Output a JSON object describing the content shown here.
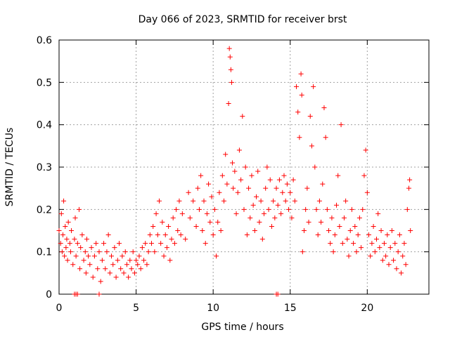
{
  "chart_data": {
    "type": "scatter",
    "title": "Day 066 of 2023, SRMTID for receiver brst",
    "xlabel": "GPS time / hours",
    "ylabel": "SRMTID / TECUs",
    "xlim": [
      0,
      24
    ],
    "ylim": [
      0,
      0.6
    ],
    "grid": true,
    "marker": "+",
    "color": "#ff0000",
    "x_ticks": [
      0,
      5,
      10,
      15,
      20
    ],
    "x_tick_labels": [
      "0",
      "5",
      "10",
      "15",
      "20"
    ],
    "y_ticks": [
      0,
      0.1,
      0.2,
      0.3,
      0.4,
      0.5,
      0.6
    ],
    "y_tick_labels": [
      "0",
      "0.1",
      "0.2",
      "0.3",
      "0.4",
      "0.5",
      "0.6"
    ],
    "series": [
      {
        "name": "SRMTID",
        "points": [
          [
            0.0,
            0.15
          ],
          [
            0.1,
            0.12
          ],
          [
            0.15,
            0.19
          ],
          [
            0.2,
            0.1
          ],
          [
            0.25,
            0.14
          ],
          [
            0.3,
            0.22
          ],
          [
            0.35,
            0.09
          ],
          [
            0.4,
            0.16
          ],
          [
            0.45,
            0.11
          ],
          [
            0.5,
            0.13
          ],
          [
            0.55,
            0.08
          ],
          [
            0.6,
            0.17
          ],
          [
            0.7,
            0.12
          ],
          [
            0.75,
            0.1
          ],
          [
            0.8,
            0.15
          ],
          [
            0.9,
            0.07
          ],
          [
            1.0,
            0.13
          ],
          [
            1.05,
            0.18
          ],
          [
            1.1,
            0.09
          ],
          [
            1.2,
            0.12
          ],
          [
            1.3,
            0.2
          ],
          [
            1.35,
            0.06
          ],
          [
            1.4,
            0.11
          ],
          [
            1.5,
            0.14
          ],
          [
            1.6,
            0.08
          ],
          [
            1.7,
            0.1
          ],
          [
            1.75,
            0.05
          ],
          [
            1.8,
            0.13
          ],
          [
            1.9,
            0.09
          ],
          [
            2.0,
            0.07
          ],
          [
            2.1,
            0.11
          ],
          [
            2.2,
            0.04
          ],
          [
            2.3,
            0.09
          ],
          [
            2.4,
            0.12
          ],
          [
            2.5,
            0.06
          ],
          [
            2.6,
            0.1
          ],
          [
            2.7,
            0.03
          ],
          [
            2.8,
            0.08
          ],
          [
            2.9,
            0.12
          ],
          [
            3.0,
            0.06
          ],
          [
            3.1,
            0.1
          ],
          [
            3.2,
            0.14
          ],
          [
            3.3,
            0.05
          ],
          [
            3.4,
            0.09
          ],
          [
            3.5,
            0.07
          ],
          [
            3.6,
            0.11
          ],
          [
            3.7,
            0.04
          ],
          [
            3.8,
            0.08
          ],
          [
            3.9,
            0.12
          ],
          [
            4.0,
            0.06
          ],
          [
            4.1,
            0.09
          ],
          [
            4.2,
            0.05
          ],
          [
            4.3,
            0.1
          ],
          [
            4.4,
            0.07
          ],
          [
            4.5,
            0.04
          ],
          [
            4.6,
            0.08
          ],
          [
            4.7,
            0.06
          ],
          [
            4.8,
            0.1
          ],
          [
            4.9,
            0.05
          ],
          [
            5.0,
            0.08
          ],
          [
            5.1,
            0.07
          ],
          [
            5.2,
            0.09
          ],
          [
            5.3,
            0.06
          ],
          [
            5.4,
            0.11
          ],
          [
            5.5,
            0.08
          ],
          [
            5.6,
            0.12
          ],
          [
            5.7,
            0.07
          ],
          [
            5.8,
            0.1
          ],
          [
            5.9,
            0.14
          ],
          [
            6.0,
            0.12
          ],
          [
            6.1,
            0.16
          ],
          [
            6.2,
            0.1
          ],
          [
            6.3,
            0.19
          ],
          [
            6.4,
            0.14
          ],
          [
            6.5,
            0.22
          ],
          [
            6.6,
            0.12
          ],
          [
            6.7,
            0.17
          ],
          [
            6.8,
            0.09
          ],
          [
            6.9,
            0.14
          ],
          [
            7.0,
            0.11
          ],
          [
            7.1,
            0.16
          ],
          [
            7.2,
            0.08
          ],
          [
            7.3,
            0.13
          ],
          [
            7.4,
            0.18
          ],
          [
            7.5,
            0.12
          ],
          [
            7.6,
            0.2
          ],
          [
            7.7,
            0.15
          ],
          [
            7.8,
            0.22
          ],
          [
            7.9,
            0.14
          ],
          [
            8.0,
            0.19
          ],
          [
            8.2,
            0.13
          ],
          [
            8.4,
            0.24
          ],
          [
            8.5,
            0.18
          ],
          [
            8.7,
            0.22
          ],
          [
            8.9,
            0.16
          ],
          [
            9.0,
            0.25
          ],
          [
            9.1,
            0.2
          ],
          [
            9.2,
            0.28
          ],
          [
            9.3,
            0.15
          ],
          [
            9.4,
            0.22
          ],
          [
            9.5,
            0.12
          ],
          [
            9.6,
            0.19
          ],
          [
            9.7,
            0.26
          ],
          [
            9.8,
            0.17
          ],
          [
            9.9,
            0.23
          ],
          [
            10.0,
            0.14
          ],
          [
            10.1,
            0.2
          ],
          [
            10.2,
            0.09
          ],
          [
            10.3,
            0.17
          ],
          [
            10.4,
            0.24
          ],
          [
            10.5,
            0.15
          ],
          [
            10.6,
            0.28
          ],
          [
            10.7,
            0.22
          ],
          [
            10.8,
            0.33
          ],
          [
            10.9,
            0.26
          ],
          [
            11.0,
            0.45
          ],
          [
            11.05,
            0.58
          ],
          [
            11.1,
            0.56
          ],
          [
            11.15,
            0.53
          ],
          [
            11.2,
            0.5
          ],
          [
            11.25,
            0.31
          ],
          [
            11.3,
            0.25
          ],
          [
            11.4,
            0.29
          ],
          [
            11.5,
            0.19
          ],
          [
            11.6,
            0.24
          ],
          [
            11.7,
            0.34
          ],
          [
            11.8,
            0.27
          ],
          [
            11.9,
            0.42
          ],
          [
            12.0,
            0.2
          ],
          [
            12.1,
            0.3
          ],
          [
            12.2,
            0.14
          ],
          [
            12.3,
            0.25
          ],
          [
            12.4,
            0.18
          ],
          [
            12.5,
            0.28
          ],
          [
            12.6,
            0.21
          ],
          [
            12.7,
            0.15
          ],
          [
            12.8,
            0.23
          ],
          [
            12.9,
            0.29
          ],
          [
            13.0,
            0.17
          ],
          [
            13.1,
            0.22
          ],
          [
            13.2,
            0.13
          ],
          [
            13.3,
            0.19
          ],
          [
            13.4,
            0.25
          ],
          [
            13.5,
            0.3
          ],
          [
            13.6,
            0.2
          ],
          [
            13.7,
            0.27
          ],
          [
            13.8,
            0.16
          ],
          [
            13.9,
            0.22
          ],
          [
            14.0,
            0.18
          ],
          [
            14.1,
            0.25
          ],
          [
            14.2,
            0.21
          ],
          [
            14.3,
            0.27
          ],
          [
            14.4,
            0.19
          ],
          [
            14.5,
            0.24
          ],
          [
            14.6,
            0.28
          ],
          [
            14.7,
            0.22
          ],
          [
            14.8,
            0.26
          ],
          [
            14.9,
            0.2
          ],
          [
            15.0,
            0.24
          ],
          [
            15.1,
            0.18
          ],
          [
            15.2,
            0.27
          ],
          [
            15.3,
            0.22
          ],
          [
            15.4,
            0.49
          ],
          [
            15.5,
            0.43
          ],
          [
            15.6,
            0.37
          ],
          [
            15.7,
            0.52
          ],
          [
            15.75,
            0.47
          ],
          [
            15.8,
            0.1
          ],
          [
            15.9,
            0.15
          ],
          [
            16.0,
            0.2
          ],
          [
            16.1,
            0.25
          ],
          [
            16.2,
            0.17
          ],
          [
            16.3,
            0.42
          ],
          [
            16.4,
            0.35
          ],
          [
            16.5,
            0.49
          ],
          [
            16.6,
            0.3
          ],
          [
            16.7,
            0.2
          ],
          [
            16.8,
            0.14
          ],
          [
            16.9,
            0.22
          ],
          [
            17.0,
            0.17
          ],
          [
            17.1,
            0.26
          ],
          [
            17.2,
            0.44
          ],
          [
            17.3,
            0.37
          ],
          [
            17.4,
            0.2
          ],
          [
            17.5,
            0.15
          ],
          [
            17.6,
            0.12
          ],
          [
            17.7,
            0.18
          ],
          [
            17.8,
            0.1
          ],
          [
            17.9,
            0.14
          ],
          [
            18.0,
            0.21
          ],
          [
            18.1,
            0.28
          ],
          [
            18.2,
            0.16
          ],
          [
            18.3,
            0.4
          ],
          [
            18.4,
            0.12
          ],
          [
            18.5,
            0.18
          ],
          [
            18.6,
            0.22
          ],
          [
            18.7,
            0.13
          ],
          [
            18.8,
            0.09
          ],
          [
            18.9,
            0.15
          ],
          [
            19.0,
            0.2
          ],
          [
            19.1,
            0.12
          ],
          [
            19.2,
            0.16
          ],
          [
            19.3,
            0.1
          ],
          [
            19.4,
            0.14
          ],
          [
            19.5,
            0.18
          ],
          [
            19.6,
            0.11
          ],
          [
            19.7,
            0.2
          ],
          [
            19.8,
            0.28
          ],
          [
            19.9,
            0.34
          ],
          [
            20.0,
            0.24
          ],
          [
            20.1,
            0.14
          ],
          [
            20.2,
            0.09
          ],
          [
            20.3,
            0.12
          ],
          [
            20.4,
            0.16
          ],
          [
            20.5,
            0.1
          ],
          [
            20.6,
            0.13
          ],
          [
            20.7,
            0.19
          ],
          [
            20.8,
            0.11
          ],
          [
            20.9,
            0.15
          ],
          [
            21.0,
            0.08
          ],
          [
            21.1,
            0.12
          ],
          [
            21.2,
            0.09
          ],
          [
            21.3,
            0.14
          ],
          [
            21.4,
            0.07
          ],
          [
            21.5,
            0.11
          ],
          [
            21.6,
            0.15
          ],
          [
            21.7,
            0.08
          ],
          [
            21.8,
            0.12
          ],
          [
            21.9,
            0.06
          ],
          [
            22.0,
            0.1
          ],
          [
            22.1,
            0.14
          ],
          [
            22.2,
            0.05
          ],
          [
            22.3,
            0.09
          ],
          [
            22.4,
            0.12
          ],
          [
            22.5,
            0.07
          ],
          [
            22.6,
            0.2
          ],
          [
            22.7,
            0.25
          ],
          [
            22.75,
            0.27
          ],
          [
            22.8,
            0.15
          ],
          [
            1.0,
            0.0
          ],
          [
            1.1,
            0.0
          ],
          [
            1.2,
            0.0
          ],
          [
            2.6,
            0.0
          ],
          [
            14.1,
            0.0
          ],
          [
            14.2,
            0.0
          ]
        ]
      }
    ]
  }
}
